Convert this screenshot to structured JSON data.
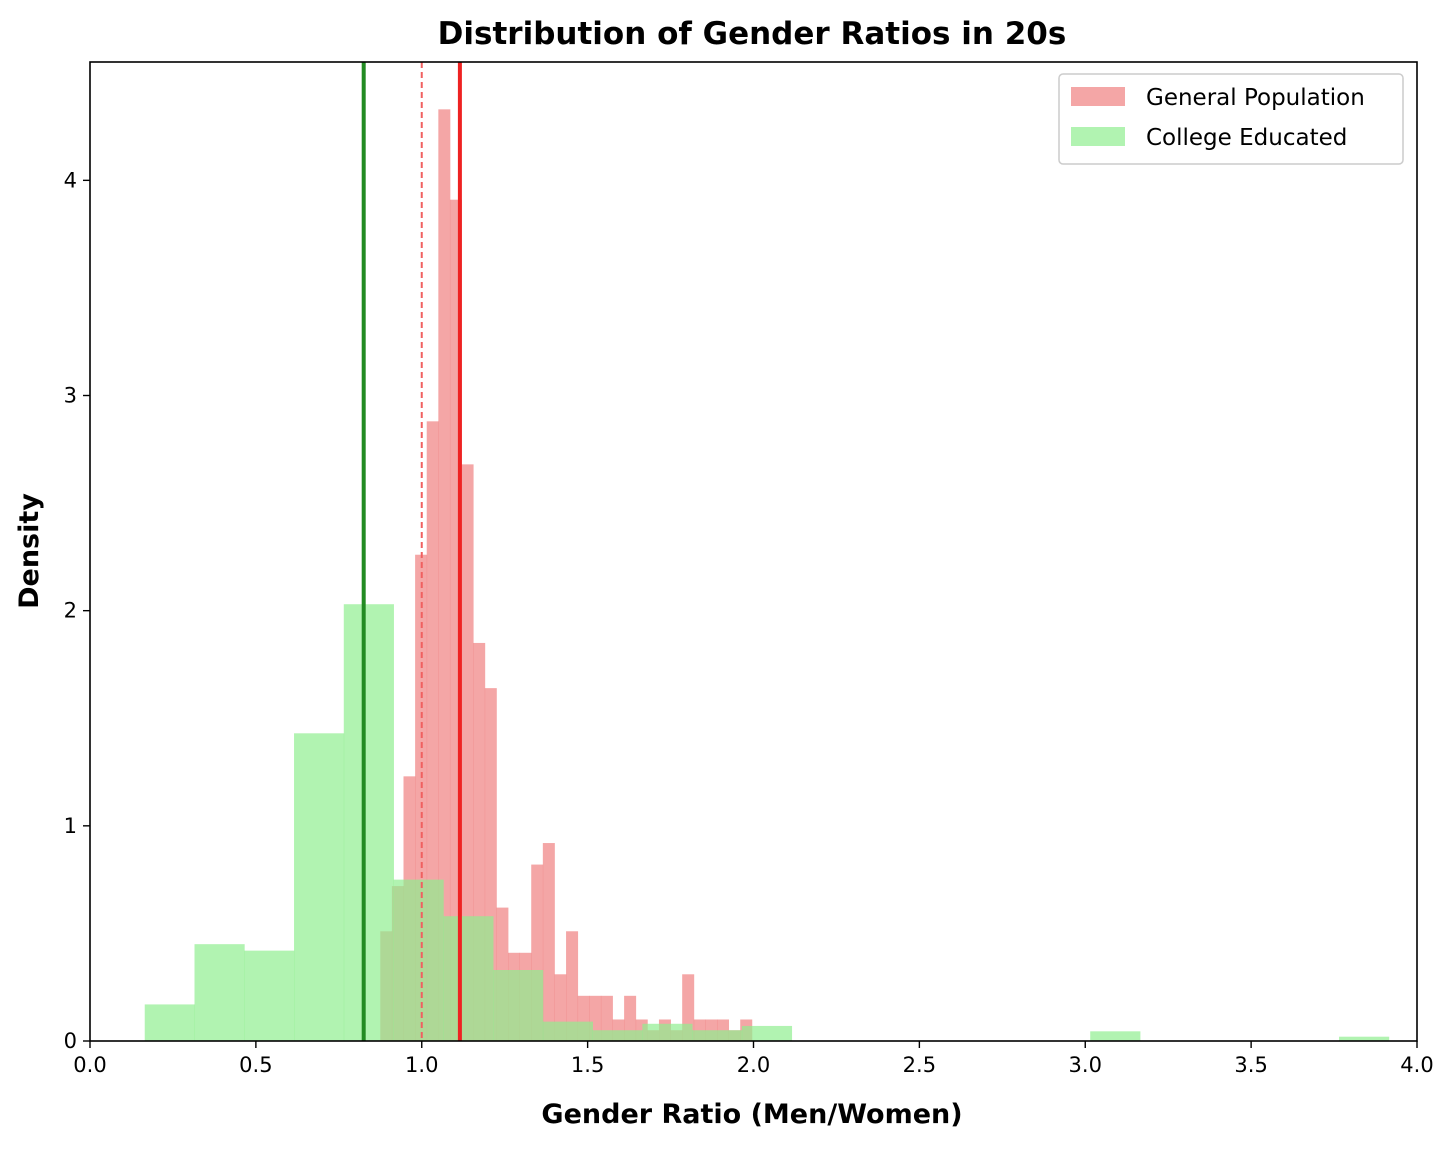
{
  "chart_data": {
    "type": "histogram",
    "title": "Distribution of Gender Ratios in 20s",
    "xlabel": "Gender Ratio (Men/Women)",
    "ylabel": "Density",
    "xlim": [
      0.0,
      4.0
    ],
    "ylim": [
      0,
      4.55
    ],
    "xticks": [
      0.0,
      0.5,
      1.0,
      1.5,
      2.0,
      2.5,
      3.0,
      3.5,
      4.0
    ],
    "xtick_labels": [
      "0.0",
      "0.5",
      "1.0",
      "1.5",
      "2.0",
      "2.5",
      "3.0",
      "3.5",
      "4.0"
    ],
    "yticks": [
      0,
      1,
      2,
      3,
      4
    ],
    "ytick_labels": [
      "0",
      "1",
      "2",
      "3",
      "4"
    ],
    "legend_position": "top-right",
    "series": [
      {
        "name": "General Population",
        "color": "#f08080",
        "opacity": 0.7,
        "bins": [
          [
            0.875,
            0.91,
            0.51
          ],
          [
            0.91,
            0.945,
            0.72
          ],
          [
            0.945,
            0.98,
            1.23
          ],
          [
            0.98,
            1.015,
            2.26
          ],
          [
            1.015,
            1.05,
            2.88
          ],
          [
            1.05,
            1.085,
            4.33
          ],
          [
            1.085,
            1.12,
            3.91
          ],
          [
            1.12,
            1.155,
            2.68
          ],
          [
            1.155,
            1.19,
            1.85
          ],
          [
            1.19,
            1.225,
            1.64
          ],
          [
            1.225,
            1.26,
            0.62
          ],
          [
            1.26,
            1.295,
            0.41
          ],
          [
            1.295,
            1.33,
            0.41
          ],
          [
            1.33,
            1.365,
            0.82
          ],
          [
            1.365,
            1.4,
            0.92
          ],
          [
            1.4,
            1.435,
            0.31
          ],
          [
            1.435,
            1.47,
            0.51
          ],
          [
            1.47,
            1.505,
            0.21
          ],
          [
            1.505,
            1.54,
            0.21
          ],
          [
            1.54,
            1.575,
            0.21
          ],
          [
            1.575,
            1.61,
            0.1
          ],
          [
            1.61,
            1.645,
            0.21
          ],
          [
            1.645,
            1.68,
            0.1
          ],
          [
            1.68,
            1.715,
            0.05
          ],
          [
            1.715,
            1.75,
            0.1
          ],
          [
            1.75,
            1.785,
            0.05
          ],
          [
            1.785,
            1.82,
            0.31
          ],
          [
            1.82,
            1.855,
            0.1
          ],
          [
            1.855,
            1.89,
            0.1
          ],
          [
            1.89,
            1.925,
            0.1
          ],
          [
            1.925,
            1.96,
            0.05
          ],
          [
            1.96,
            1.995,
            0.1
          ]
        ]
      },
      {
        "name": "College Educated",
        "color": "#90ee90",
        "opacity": 0.7,
        "bins": [
          [
            0.165,
            0.315,
            0.17
          ],
          [
            0.315,
            0.465,
            0.45
          ],
          [
            0.465,
            0.615,
            0.42
          ],
          [
            0.615,
            0.765,
            1.43
          ],
          [
            0.765,
            0.915,
            2.03
          ],
          [
            0.915,
            1.065,
            0.75
          ],
          [
            1.065,
            1.215,
            0.58
          ],
          [
            1.215,
            1.365,
            0.33
          ],
          [
            1.365,
            1.515,
            0.09
          ],
          [
            1.515,
            1.665,
            0.05
          ],
          [
            1.665,
            1.815,
            0.08
          ],
          [
            1.815,
            1.965,
            0.05
          ],
          [
            1.965,
            2.115,
            0.07
          ],
          [
            2.115,
            2.265,
            0.0
          ],
          [
            2.265,
            2.415,
            0.0
          ],
          [
            2.415,
            2.565,
            0.0
          ],
          [
            2.565,
            2.715,
            0.0
          ],
          [
            2.715,
            2.865,
            0.0
          ],
          [
            2.865,
            3.015,
            0.0
          ],
          [
            3.015,
            3.165,
            0.045
          ],
          [
            3.165,
            3.315,
            0.0
          ],
          [
            3.315,
            3.465,
            0.0
          ],
          [
            3.465,
            3.615,
            0.0
          ],
          [
            3.615,
            3.765,
            0.0
          ],
          [
            3.765,
            3.915,
            0.02
          ]
        ]
      }
    ],
    "reference_lines": [
      {
        "name": "college-educated-mean-line",
        "x": 0.825,
        "color": "#228b22",
        "style": "solid",
        "width": 4
      },
      {
        "name": "parity-line",
        "x": 1.0,
        "color": "#f06060",
        "style": "dashed",
        "width": 2
      },
      {
        "name": "general-population-mean-line",
        "x": 1.115,
        "color": "#ee2222",
        "style": "solid",
        "width": 4
      }
    ]
  }
}
